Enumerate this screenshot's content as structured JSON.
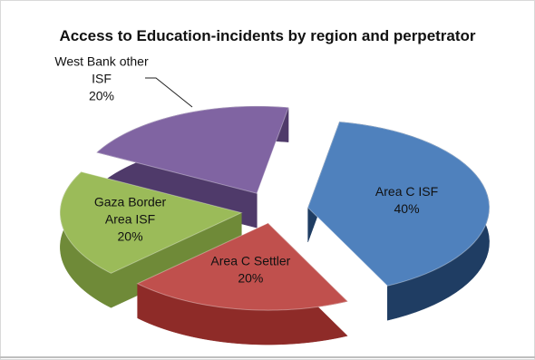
{
  "chart_data": {
    "type": "pie",
    "style": "3d-exploded",
    "title": "Access to Education-incidents by region and perpetrator",
    "slices": [
      {
        "label_lines": [
          "Area C ISF"
        ],
        "percent_label": "40%",
        "value": 40,
        "color": "#4f81bd",
        "side_color": "#1f3d63"
      },
      {
        "label_lines": [
          "Area C Settler"
        ],
        "percent_label": "20%",
        "value": 20,
        "color": "#c0504d",
        "side_color": "#8e2b28"
      },
      {
        "label_lines": [
          "Gaza Border",
          "Area ISF"
        ],
        "percent_label": "20%",
        "value": 20,
        "color": "#9bbb59",
        "side_color": "#6f8a38"
      },
      {
        "label_lines": [
          "West Bank other",
          "ISF"
        ],
        "percent_label": "20%",
        "value": 20,
        "color": "#8064a2",
        "side_color": "#4f3a6a"
      }
    ]
  }
}
